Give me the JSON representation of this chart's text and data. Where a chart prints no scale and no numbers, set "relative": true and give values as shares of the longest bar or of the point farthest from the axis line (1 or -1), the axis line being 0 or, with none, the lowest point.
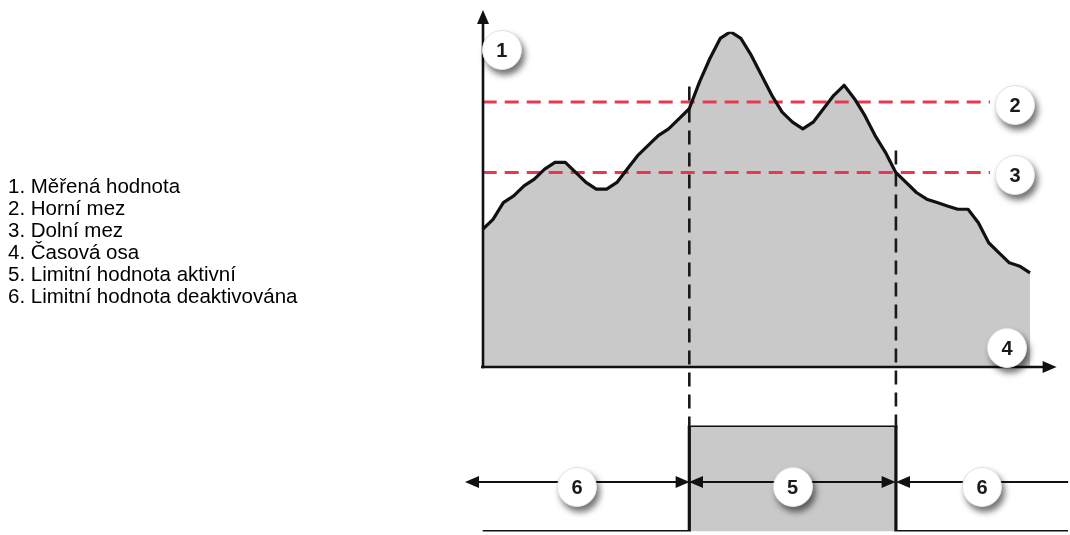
{
  "chart_data": [
    {
      "type": "area",
      "relative": true,
      "ylabel": "1",
      "xlabel": "4",
      "categories": [
        null,
        null,
        null,
        null,
        null,
        null,
        null,
        null,
        null,
        null,
        null,
        null,
        null,
        null,
        null,
        null,
        null,
        null,
        null,
        null,
        null,
        null,
        null,
        null,
        null,
        null,
        null,
        null,
        null,
        null,
        null,
        null,
        null,
        null,
        null,
        null,
        null,
        null,
        null,
        null,
        null,
        null,
        null,
        null,
        null,
        null,
        null,
        null,
        null,
        null,
        null,
        null,
        null,
        null
      ],
      "series": [
        {
          "color": "#c9c9c9",
          "values": [
            0.41,
            0.44,
            0.49,
            0.51,
            0.54,
            0.56,
            0.59,
            0.61,
            0.61,
            0.58,
            0.55,
            0.53,
            0.53,
            0.55,
            0.59,
            0.63,
            0.66,
            0.69,
            0.71,
            0.74,
            0.77,
            0.85,
            0.92,
            0.98,
            1,
            0.98,
            0.93,
            0.87,
            0.81,
            0.76,
            0.73,
            0.71,
            0.73,
            0.77,
            0.81,
            0.84,
            0.8,
            0.75,
            0.69,
            0.64,
            0.58,
            0.55,
            0.52,
            0.5,
            0.49,
            0.48,
            0.47,
            0.47,
            0.43,
            0.37,
            0.34,
            0.31,
            0.3,
            0.28
          ]
        }
      ],
      "ref_lines": [
        {
          "axis": "y",
          "value": 0.79,
          "color": "#e8384f",
          "line_style": "dashed"
        },
        {
          "axis": "y",
          "value": 0.58,
          "color": "#e8384f",
          "line_style": "dashed"
        }
      ],
      "annotations": [
        "1. Měřená hodnota",
        "2. Horní mez",
        "3. Dolní mez",
        "4. Časová osa",
        "5. Limitní hodnota aktivní",
        "6. Limitní hodnota deaktivována",
        "2",
        "3"
      ]
    },
    {
      "type": "step",
      "relative": true,
      "categories": [
        null,
        null,
        null,
        null,
        null,
        null,
        null,
        null,
        null,
        null,
        null,
        null,
        null,
        null,
        null,
        null,
        null,
        null
      ],
      "series": [
        {
          "color": "#111111",
          "values": [
            0,
            0,
            0,
            0,
            0,
            0,
            1,
            1,
            1,
            1,
            1,
            1,
            0,
            0,
            0,
            0,
            0,
            0
          ]
        }
      ],
      "annotations": [
        "6",
        "5",
        "6"
      ]
    }
  ]
}
